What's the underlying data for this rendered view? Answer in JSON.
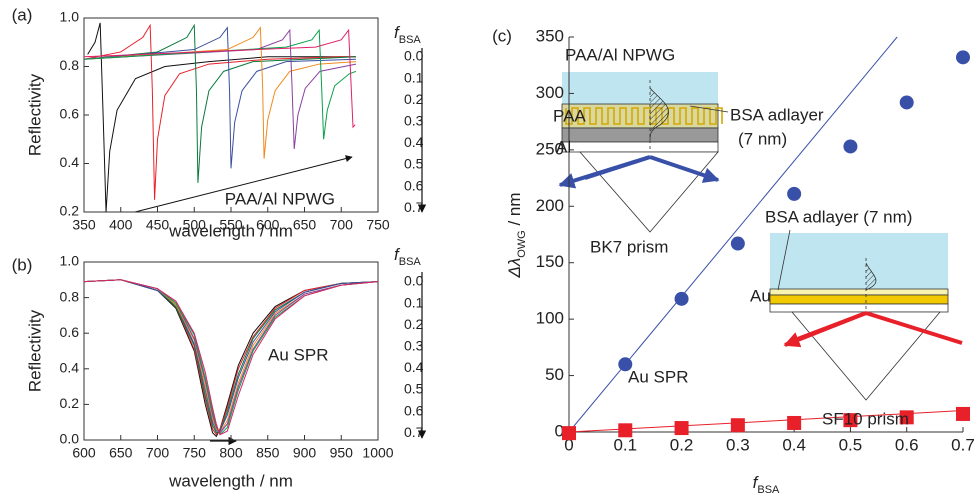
{
  "chart_data": [
    {
      "type": "line",
      "panel_label": "(a)",
      "xlabel": "wavelength / nm",
      "ylabel": "Reflectivity",
      "xlim": [
        350,
        750
      ],
      "ylim": [
        0.2,
        1.0
      ],
      "xticks": [
        350,
        400,
        450,
        500,
        550,
        600,
        650,
        700,
        750
      ],
      "yticks": [
        0.2,
        0.4,
        0.6,
        0.8,
        {
          "value": 1,
          "label": "1.0"
        }
      ],
      "legend_title": {
        "text": "f",
        "sub": "BSA"
      },
      "series": [
        {
          "name": "0.0",
          "color": "#111111",
          "x": [
            355,
            365,
            372,
            376,
            380,
            385,
            395,
            420,
            460,
            520,
            600,
            700,
            720
          ],
          "values": [
            0.85,
            0.9,
            0.98,
            0.6,
            0.2,
            0.45,
            0.62,
            0.75,
            0.8,
            0.82,
            0.84,
            0.84,
            0.84
          ]
        },
        {
          "name": "0.1",
          "color": "#e8202a",
          "x": [
            350,
            400,
            430,
            440,
            443,
            446,
            450,
            460,
            480,
            520,
            600,
            700,
            720
          ],
          "values": [
            0.83,
            0.86,
            0.92,
            0.97,
            0.7,
            0.25,
            0.5,
            0.68,
            0.77,
            0.81,
            0.83,
            0.84,
            0.84
          ]
        },
        {
          "name": "0.2",
          "color": "#0a7a3c",
          "x": [
            350,
            450,
            490,
            500,
            503,
            505,
            510,
            520,
            540,
            580,
            650,
            720
          ],
          "values": [
            0.83,
            0.86,
            0.92,
            0.97,
            0.7,
            0.32,
            0.55,
            0.7,
            0.78,
            0.82,
            0.83,
            0.84
          ]
        },
        {
          "name": "0.3",
          "color": "#3a4fa0",
          "x": [
            350,
            500,
            535,
            545,
            548,
            550,
            555,
            565,
            585,
            625,
            720
          ],
          "values": [
            0.83,
            0.87,
            0.92,
            0.96,
            0.7,
            0.38,
            0.57,
            0.7,
            0.78,
            0.82,
            0.83
          ]
        },
        {
          "name": "0.4",
          "color": "#f08a1c",
          "x": [
            350,
            545,
            580,
            590,
            593,
            595,
            600,
            610,
            630,
            670,
            720
          ],
          "values": [
            0.83,
            0.87,
            0.92,
            0.96,
            0.72,
            0.42,
            0.58,
            0.7,
            0.78,
            0.81,
            0.82
          ]
        },
        {
          "name": "0.5",
          "color": "#8a3fa0",
          "x": [
            350,
            585,
            620,
            630,
            633,
            636,
            641,
            651,
            671,
            720
          ],
          "values": [
            0.83,
            0.87,
            0.91,
            0.95,
            0.72,
            0.46,
            0.6,
            0.71,
            0.78,
            0.81
          ]
        },
        {
          "name": "0.6",
          "color": "#0aa04a",
          "x": [
            350,
            625,
            660,
            670,
            673,
            676,
            681,
            691,
            711,
            720
          ],
          "values": [
            0.83,
            0.88,
            0.91,
            0.95,
            0.74,
            0.5,
            0.62,
            0.72,
            0.77,
            0.78
          ]
        },
        {
          "name": "0.7",
          "color": "#e0206a",
          "x": [
            350,
            665,
            700,
            710,
            713,
            716,
            719
          ],
          "values": [
            0.84,
            0.88,
            0.91,
            0.95,
            0.75,
            0.55,
            0.56
          ]
        }
      ],
      "annotations": [
        {
          "text": "PAA/Al NPWG",
          "color": "#3a4fa0"
        }
      ]
    },
    {
      "type": "line",
      "panel_label": "(b)",
      "xlabel": "wavelength / nm",
      "ylabel": "Reflectivity",
      "xlim": [
        600,
        1000
      ],
      "ylim": [
        0,
        1.0
      ],
      "xticks": [
        600,
        650,
        700,
        750,
        800,
        850,
        900,
        950,
        1000
      ],
      "yticks": [
        {
          "value": 0,
          "label": "0.0"
        },
        0.2,
        0.4,
        0.6,
        0.8,
        {
          "value": 1,
          "label": "1.0"
        }
      ],
      "legend_title": {
        "text": "f",
        "sub": "BSA"
      },
      "x": [
        600,
        650,
        700,
        725,
        750,
        765,
        775,
        780,
        785,
        795,
        810,
        830,
        860,
        900,
        950,
        1000
      ],
      "series": [
        {
          "name": "0.0",
          "color": "#111111",
          "values": [
            0.89,
            0.9,
            0.84,
            0.74,
            0.5,
            0.2,
            0.04,
            0.02,
            0.06,
            0.2,
            0.42,
            0.6,
            0.75,
            0.84,
            0.88,
            0.89
          ]
        },
        {
          "name": "0.1",
          "color": "#e8202a",
          "values": [
            0.89,
            0.9,
            0.84,
            0.75,
            0.51,
            0.23,
            0.06,
            0.03,
            0.06,
            0.18,
            0.4,
            0.58,
            0.74,
            0.84,
            0.88,
            0.89
          ]
        },
        {
          "name": "0.2",
          "color": "#0a7a3c",
          "values": [
            0.89,
            0.9,
            0.84,
            0.75,
            0.53,
            0.25,
            0.08,
            0.04,
            0.05,
            0.16,
            0.37,
            0.57,
            0.73,
            0.83,
            0.88,
            0.89
          ]
        },
        {
          "name": "0.3",
          "color": "#3a4fa0",
          "values": [
            0.89,
            0.9,
            0.84,
            0.76,
            0.54,
            0.28,
            0.1,
            0.05,
            0.05,
            0.14,
            0.35,
            0.55,
            0.72,
            0.83,
            0.88,
            0.89
          ]
        },
        {
          "name": "0.4",
          "color": "#f08a1c",
          "values": [
            0.89,
            0.9,
            0.85,
            0.76,
            0.56,
            0.3,
            0.12,
            0.06,
            0.04,
            0.11,
            0.32,
            0.53,
            0.71,
            0.82,
            0.87,
            0.89
          ]
        },
        {
          "name": "0.5",
          "color": "#8a3fa0",
          "values": [
            0.89,
            0.9,
            0.85,
            0.77,
            0.57,
            0.33,
            0.14,
            0.07,
            0.04,
            0.09,
            0.3,
            0.51,
            0.7,
            0.82,
            0.87,
            0.89
          ]
        },
        {
          "name": "0.6",
          "color": "#0aa04a",
          "values": [
            0.89,
            0.9,
            0.85,
            0.77,
            0.59,
            0.35,
            0.16,
            0.08,
            0.03,
            0.07,
            0.28,
            0.5,
            0.69,
            0.81,
            0.87,
            0.89
          ]
        },
        {
          "name": "0.7",
          "color": "#e0206a",
          "values": [
            0.89,
            0.9,
            0.85,
            0.78,
            0.6,
            0.38,
            0.18,
            0.09,
            0.03,
            0.05,
            0.25,
            0.48,
            0.68,
            0.81,
            0.87,
            0.89
          ]
        }
      ],
      "annotations": [
        {
          "text": "Au SPR",
          "color": "#e8202a"
        }
      ]
    },
    {
      "type": "scatter",
      "panel_label": "(c)",
      "xlabel": {
        "text": "f",
        "sub": "BSA"
      },
      "ylabel": {
        "text": "Δλ",
        "sub": "OWG",
        "unit": " / nm"
      },
      "xlim": [
        0,
        0.7
      ],
      "ylim": [
        0,
        350
      ],
      "xticks": [
        0,
        0.1,
        0.2,
        0.3,
        0.4,
        0.5,
        0.6,
        0.7
      ],
      "yticks": [
        0,
        50,
        100,
        150,
        200,
        250,
        300,
        350
      ],
      "series": [
        {
          "color": "#3850a8",
          "marker": "circle",
          "x": [
            0.1,
            0.2,
            0.3,
            0.4,
            0.5,
            0.6,
            0.7
          ],
          "values": [
            60,
            118,
            167,
            211,
            253,
            292,
            332
          ],
          "fit": {
            "x": [
              0,
              0.583
            ],
            "values": [
              0,
              350
            ]
          }
        },
        {
          "color": "#e8202a",
          "marker": "square",
          "x": [
            0,
            0.1,
            0.2,
            0.3,
            0.4,
            0.5,
            0.6,
            0.7
          ],
          "values": [
            -1,
            1.5,
            3.5,
            6,
            8,
            10.5,
            13,
            16
          ],
          "fit": {
            "x": [
              0,
              0.7
            ],
            "values": [
              0,
              19
            ]
          }
        }
      ],
      "annotations": [
        {
          "text": "PAA/Al NPWG",
          "color": "#3850a8"
        },
        {
          "text": "BSA adlayer",
          "color": "#222222"
        },
        {
          "text": "(7 nm)",
          "color": "#222222"
        },
        {
          "text": "PAA",
          "color": "#222222"
        },
        {
          "text": "Al",
          "color": "#222222"
        },
        {
          "text": "BK7 prism",
          "color": "#222222"
        },
        {
          "text": "BSA adlayer (7 nm)",
          "color": "#222222"
        },
        {
          "text": "Au",
          "color": "#222222"
        },
        {
          "text": "Au SPR",
          "color": "#e8202a"
        },
        {
          "text": "SF10 prism",
          "color": "#222222"
        }
      ]
    }
  ]
}
